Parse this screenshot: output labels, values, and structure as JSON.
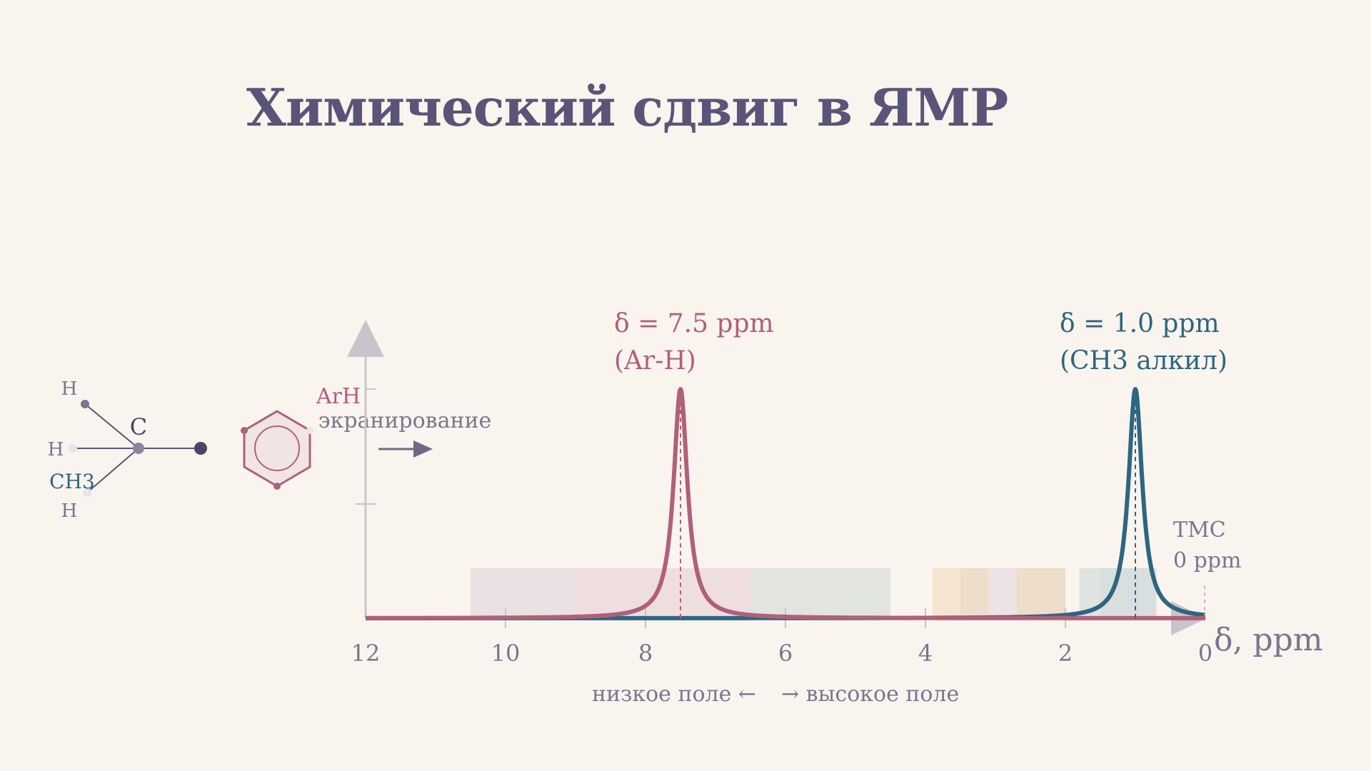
{
  "title": "Химический сдвиг в ЯМР",
  "colors": {
    "background": "#faf4ee",
    "title": "#5a5478",
    "aromatic_peak": "#b0607a",
    "alkyl_peak": "#2d6680",
    "axis": "#c9c4cc",
    "text_muted": "#7a7590"
  },
  "molecule": {
    "carbon": "C",
    "h_top": "H",
    "h_left": "H",
    "h_bottom": "H",
    "group": "CH3"
  },
  "shielding": {
    "label_top": "ArH",
    "label_bottom": "экранирование"
  },
  "peaks": {
    "aromatic": {
      "line1": "δ = 7.5 ppm",
      "line2": "(Ar-H)"
    },
    "alkyl": {
      "line1": "δ = 1.0 ppm",
      "line2": "(CH3 алкил)"
    },
    "tms": {
      "line1": "TMC",
      "line2": "0 ppm"
    }
  },
  "axis": {
    "xlabel": "δ, ppm",
    "field_low": "низкое поле ←",
    "field_high": "→ высокое поле"
  },
  "chart_data": {
    "type": "line",
    "xlabel": "δ, ppm",
    "xlim": [
      12,
      0
    ],
    "x_reversed": true,
    "x_ticks": [
      "12",
      "10",
      "8",
      "6",
      "4",
      "2",
      "0"
    ],
    "series": [
      {
        "color": "#b0607a",
        "peak_ppm": 7.5,
        "half_width_ppm": 0.12
      },
      {
        "color": "#2d6680",
        "peak_ppm": 1.0,
        "half_width_ppm": 0.12
      }
    ],
    "annotations": [
      "δ = 7.5 ppm",
      "(Ar-H)",
      "δ = 1.0 ppm",
      "(CH3 алкил)",
      "TMC",
      "0 ppm"
    ],
    "shaded_regions_ppm": [
      {
        "from": 10.5,
        "to": 9.0,
        "color": "#e7dfe0"
      },
      {
        "from": 9.0,
        "to": 6.5,
        "color": "#ecdcde"
      },
      {
        "from": 6.5,
        "to": 4.5,
        "color": "#dfe2dc"
      },
      {
        "from": 3.9,
        "to": 3.5,
        "color": "#f4e3cc"
      },
      {
        "from": 3.5,
        "to": 3.1,
        "color": "#ecdac6"
      },
      {
        "from": 3.1,
        "to": 2.7,
        "color": "#ebe1e2"
      },
      {
        "from": 2.7,
        "to": 2.0,
        "color": "#ecdac6"
      },
      {
        "from": 1.8,
        "to": 1.5,
        "color": "#dde2df"
      },
      {
        "from": 1.5,
        "to": 0.7,
        "color": "#d5dcdc"
      }
    ]
  }
}
